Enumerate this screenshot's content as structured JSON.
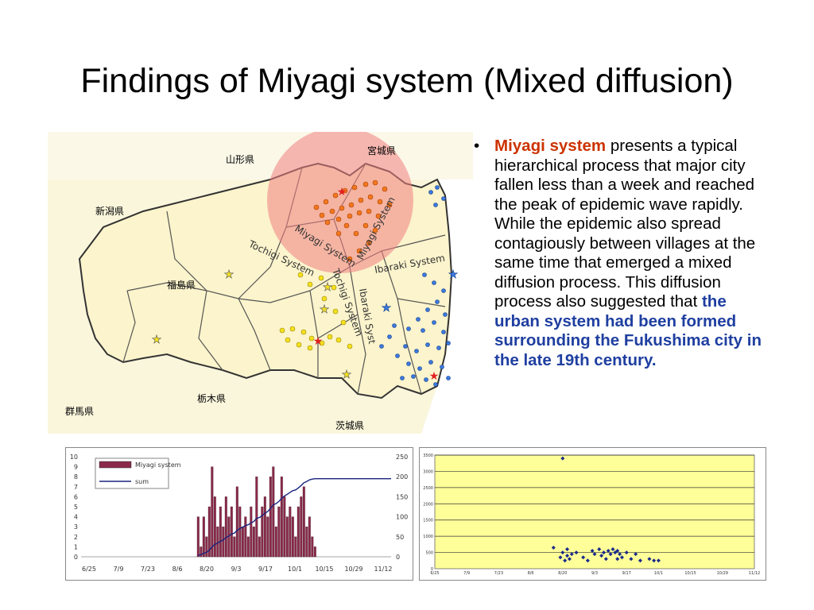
{
  "slide": {
    "title": "Findings of Miyagi system (Mixed diffusion)",
    "bullet": {
      "marker": "•",
      "lead": "Miyagi system",
      "body": " presents a typical hierarchical process that major city fallen less than a week and reached the peak of epidemic wave rapidly. While the epidemic also spread contagiously between villages at the same time that emerged a mixed diffusion process. This diffusion process also suggested that ",
      "emphasis": "the urban system had been formed surrounding the Fukushima city in the late 19th century."
    },
    "colors": {
      "lead": "#cc3300",
      "emphasis": "#1f3fa0"
    }
  },
  "map": {
    "prefectures": [
      "山形県",
      "宮城県",
      "新潟県",
      "福島県",
      "栃木県",
      "茨城県",
      "群馬県"
    ],
    "systems": [
      "Tochigi System",
      "Miyagi System",
      "Miyagi System",
      "Ibaraki System",
      "Tochigi System",
      "Ibaraki Syst"
    ]
  },
  "chart_data": [
    {
      "type": "bar",
      "legend": [
        "Miyagi system",
        "sum"
      ],
      "x_ticks": [
        "6/25",
        "7/9",
        "7/23",
        "8/6",
        "8/20",
        "9/3",
        "9/17",
        "10/1",
        "10/15",
        "10/29",
        "11/12"
      ],
      "y_ticks": [
        "0",
        "1",
        "2",
        "3",
        "4",
        "5",
        "6",
        "7",
        "8",
        "9",
        "10"
      ],
      "y2_ticks": [
        "0",
        "50",
        "100",
        "150",
        "200",
        "250"
      ],
      "ylim": [
        0,
        10
      ],
      "y2lim": [
        0,
        250
      ],
      "series": [
        {
          "name": "Miyagi system",
          "values": [
            4,
            1,
            4,
            2,
            5,
            9,
            6,
            3,
            5,
            3,
            6,
            4,
            5,
            2,
            7,
            5,
            3,
            4,
            2,
            5,
            3,
            8,
            2,
            5,
            6,
            4,
            8,
            9,
            3,
            5,
            8,
            6,
            4,
            5,
            4,
            2,
            5,
            6,
            7,
            3,
            4,
            2,
            1
          ]
        },
        {
          "name": "sum",
          "values": [
            4,
            5,
            9,
            11,
            16,
            25,
            31,
            34,
            39,
            42,
            48,
            52,
            57,
            59,
            66,
            71,
            74,
            78,
            80,
            85,
            88,
            96,
            98,
            103,
            109,
            113,
            121,
            130,
            133,
            138,
            146,
            152,
            156,
            161,
            165,
            167,
            172,
            178,
            185,
            188,
            192,
            194,
            195
          ]
        }
      ]
    },
    {
      "type": "scatter",
      "x_ticks": [
        "6/25",
        "7/9",
        "7/23",
        "8/6",
        "8/20",
        "9/3",
        "9/17",
        "10/1",
        "10/15",
        "10/29",
        "11/12"
      ],
      "y_ticks": [
        "0",
        "500",
        "1000",
        "1500",
        "2000",
        "2500",
        "3000",
        "3500"
      ],
      "ylim": [
        0,
        3500
      ],
      "points": [
        {
          "x": 56,
          "y": 3400
        },
        {
          "x": 52,
          "y": 650
        },
        {
          "x": 55,
          "y": 350
        },
        {
          "x": 56,
          "y": 500
        },
        {
          "x": 57,
          "y": 250
        },
        {
          "x": 58,
          "y": 600
        },
        {
          "x": 58,
          "y": 400
        },
        {
          "x": 59,
          "y": 300
        },
        {
          "x": 60,
          "y": 450
        },
        {
          "x": 62,
          "y": 500
        },
        {
          "x": 65,
          "y": 350
        },
        {
          "x": 67,
          "y": 250
        },
        {
          "x": 69,
          "y": 550
        },
        {
          "x": 70,
          "y": 450
        },
        {
          "x": 72,
          "y": 600
        },
        {
          "x": 73,
          "y": 400
        },
        {
          "x": 74,
          "y": 500
        },
        {
          "x": 75,
          "y": 300
        },
        {
          "x": 76,
          "y": 550
        },
        {
          "x": 77,
          "y": 450
        },
        {
          "x": 78,
          "y": 600
        },
        {
          "x": 79,
          "y": 500
        },
        {
          "x": 80,
          "y": 300
        },
        {
          "x": 80,
          "y": 550
        },
        {
          "x": 81,
          "y": 450
        },
        {
          "x": 82,
          "y": 350
        },
        {
          "x": 84,
          "y": 500
        },
        {
          "x": 86,
          "y": 300
        },
        {
          "x": 88,
          "y": 450
        },
        {
          "x": 90,
          "y": 250
        },
        {
          "x": 94,
          "y": 300
        },
        {
          "x": 96,
          "y": 250
        },
        {
          "x": 98,
          "y": 250
        }
      ]
    }
  ]
}
